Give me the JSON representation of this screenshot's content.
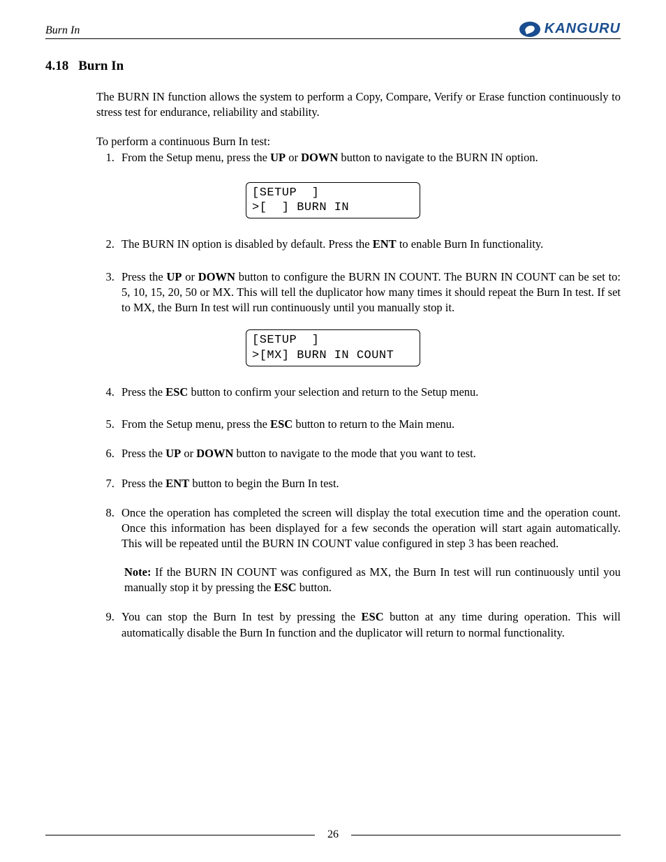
{
  "header": {
    "running_title": "Burn In",
    "logo_text": "KANGURU",
    "logo_color": "#1a4d8f"
  },
  "section": {
    "number": "4.18",
    "title": "Burn In"
  },
  "intro": "The BURN IN function allows the system to perform a Copy, Compare, Verify or Erase function continuously to stress test for endurance, reliability and stability.",
  "lead": "To perform a continuous Burn In test:",
  "steps": {
    "s1_a": "From the Setup menu, press the ",
    "s1_b": " or ",
    "s1_c": " button to navigate to the BURN IN option.",
    "s2_a": "The BURN IN option is disabled by default. Press the ",
    "s2_b": " to enable Burn In functionality.",
    "s3_a": "Press  the ",
    "s3_b": " or ",
    "s3_c": " button to configure the BURN IN COUNT. The BURN IN COUNT can be set to: 5, 10, 15, 20, 50 or MX. This will tell the duplicator how many times it should repeat the Burn In test. If set to MX, the Burn In test will run continuously until you manually stop it.",
    "s4_a": "Press the ",
    "s4_b": " button to confirm your selection and return to the Setup menu.",
    "s5_a": "From the Setup menu, press the ",
    "s5_b": " button to return to the Main menu.",
    "s6_a": "Press the ",
    "s6_b": " or ",
    "s6_c": " button to navigate to the mode that you want to test.",
    "s7_a": "Press the ",
    "s7_b": " button to begin the Burn In test.",
    "s8": "Once the operation has completed the screen will display the total execution time and the operation count. Once this information has been displayed for a few seconds the operation will start again automatically. This will be repeated until the BURN IN COUNT value configured in step 3 has been reached.",
    "s8_note_a": " If the BURN IN COUNT was configured as MX, the Burn In test will run continuously until you manually stop it by pressing the ",
    "s8_note_b": " button.",
    "s9_a": "You can stop the Burn In test by pressing the ",
    "s9_b": " button at any time during operation. This will automatically disable the Burn In function and the duplicator will return to normal functionality."
  },
  "buttons": {
    "up": "UP",
    "down": "DOWN",
    "ent": "ENT",
    "esc": "ESC",
    "note": "Note:"
  },
  "lcd1": {
    "line1": "[SETUP  ]",
    "line2": ">[  ] BURN IN"
  },
  "lcd2": {
    "line1": "[SETUP  ]",
    "line2": ">[MX] BURN IN COUNT"
  },
  "footer": {
    "page": "26"
  }
}
